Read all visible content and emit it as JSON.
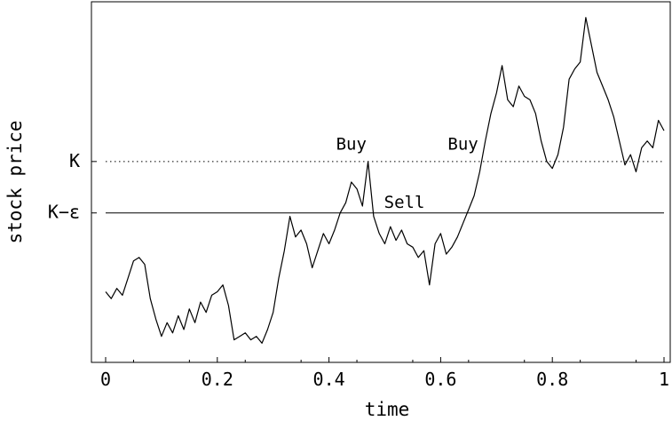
{
  "chart_data": {
    "type": "line",
    "title": "",
    "xlabel": "time",
    "ylabel": "stock price",
    "xlim": [
      0,
      1
    ],
    "ylim": [
      0,
      1
    ],
    "grid": false,
    "x_ticks": [
      {
        "value": 0,
        "label": "0"
      },
      {
        "value": 0.2,
        "label": "0.2"
      },
      {
        "value": 0.4,
        "label": "0.4"
      },
      {
        "value": 0.6,
        "label": "0.6"
      },
      {
        "value": 0.8,
        "label": "0.8"
      },
      {
        "value": 1,
        "label": "1"
      }
    ],
    "reference_lines": [
      {
        "label": "K",
        "y": 0.56,
        "style": "dotted"
      },
      {
        "label": "K−ε",
        "y": 0.41,
        "style": "solid"
      }
    ],
    "annotations": [
      {
        "text": "Buy",
        "x": 0.44,
        "y": 0.595
      },
      {
        "text": "Sell",
        "x": 0.535,
        "y": 0.425
      },
      {
        "text": "Buy",
        "x": 0.64,
        "y": 0.595
      }
    ],
    "series": [
      {
        "x": [
          0,
          0.01,
          0.02,
          0.03,
          0.04,
          0.05,
          0.06,
          0.07,
          0.08,
          0.09,
          0.1,
          0.11,
          0.12,
          0.13,
          0.14,
          0.15,
          0.16,
          0.17,
          0.18,
          0.19,
          0.2,
          0.21,
          0.22,
          0.23,
          0.24,
          0.25,
          0.26,
          0.27,
          0.28,
          0.29,
          0.3,
          0.31,
          0.32,
          0.33,
          0.34,
          0.35,
          0.36,
          0.37,
          0.38,
          0.39,
          0.4,
          0.41,
          0.42,
          0.43,
          0.44,
          0.45,
          0.46,
          0.47,
          0.48,
          0.49,
          0.5,
          0.51,
          0.52,
          0.53,
          0.54,
          0.55,
          0.56,
          0.57,
          0.58,
          0.59,
          0.6,
          0.61,
          0.62,
          0.63,
          0.64,
          0.65,
          0.66,
          0.67,
          0.68,
          0.69,
          0.7,
          0.71,
          0.72,
          0.73,
          0.74,
          0.75,
          0.76,
          0.77,
          0.78,
          0.79,
          0.8,
          0.81,
          0.82,
          0.83,
          0.84,
          0.85,
          0.86,
          0.87,
          0.88,
          0.89,
          0.9,
          0.91,
          0.92,
          0.93,
          0.94,
          0.95,
          0.96,
          0.97,
          0.98,
          0.99,
          1
        ],
        "y": [
          0.18,
          0.16,
          0.19,
          0.17,
          0.22,
          0.27,
          0.28,
          0.26,
          0.16,
          0.1,
          0.05,
          0.09,
          0.06,
          0.11,
          0.07,
          0.13,
          0.09,
          0.15,
          0.12,
          0.17,
          0.18,
          0.2,
          0.14,
          0.04,
          0.05,
          0.06,
          0.04,
          0.05,
          0.03,
          0.07,
          0.12,
          0.22,
          0.3,
          0.4,
          0.34,
          0.36,
          0.32,
          0.25,
          0.3,
          0.35,
          0.32,
          0.36,
          0.41,
          0.44,
          0.5,
          0.48,
          0.43,
          0.56,
          0.4,
          0.35,
          0.32,
          0.37,
          0.33,
          0.36,
          0.32,
          0.31,
          0.28,
          0.3,
          0.2,
          0.32,
          0.35,
          0.29,
          0.31,
          0.34,
          0.38,
          0.42,
          0.46,
          0.53,
          0.62,
          0.7,
          0.76,
          0.84,
          0.74,
          0.72,
          0.78,
          0.75,
          0.74,
          0.7,
          0.62,
          0.56,
          0.54,
          0.58,
          0.66,
          0.8,
          0.83,
          0.85,
          0.98,
          0.9,
          0.82,
          0.78,
          0.74,
          0.69,
          0.62,
          0.55,
          0.58,
          0.53,
          0.6,
          0.62,
          0.6,
          0.68,
          0.65
        ]
      }
    ]
  }
}
